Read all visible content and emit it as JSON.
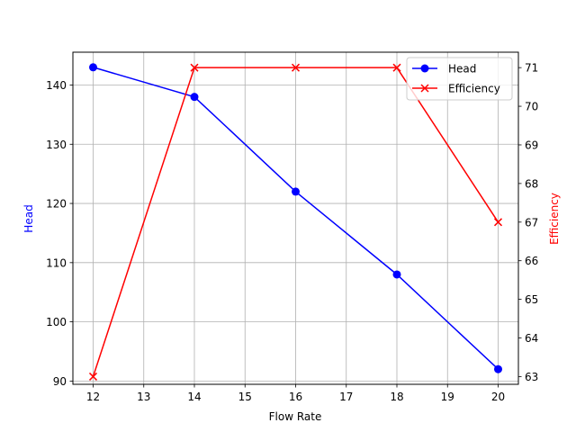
{
  "chart_data": {
    "type": "line",
    "title": "",
    "xlabel": "Flow Rate",
    "ylabel": "Head",
    "ylabel_right": "Efficiency",
    "x": [
      12,
      14,
      16,
      18,
      20
    ],
    "xlim": [
      11.6,
      20.4
    ],
    "ylim": [
      89.45,
      145.55
    ],
    "ylim_right": [
      62.8,
      71.4
    ],
    "x_ticks": [
      12,
      13,
      14,
      15,
      16,
      17,
      18,
      19,
      20
    ],
    "y_ticks": [
      90,
      100,
      110,
      120,
      130,
      140
    ],
    "y_ticks_right": [
      63,
      64,
      65,
      66,
      67,
      68,
      69,
      70,
      71
    ],
    "grid": true,
    "legend_position": "upper right",
    "series": [
      {
        "name": "Head",
        "axis": "left",
        "color": "#0000ff",
        "marker": "circle",
        "values": [
          143,
          138,
          122,
          108,
          92
        ]
      },
      {
        "name": "Efficiency",
        "axis": "right",
        "color": "#ff0000",
        "marker": "x",
        "values": [
          63,
          71,
          71,
          71,
          67
        ]
      }
    ]
  },
  "colors": {
    "head": "#0000ff",
    "efficiency": "#ff0000",
    "grid": "#b0b0b0",
    "axis": "#000000"
  }
}
